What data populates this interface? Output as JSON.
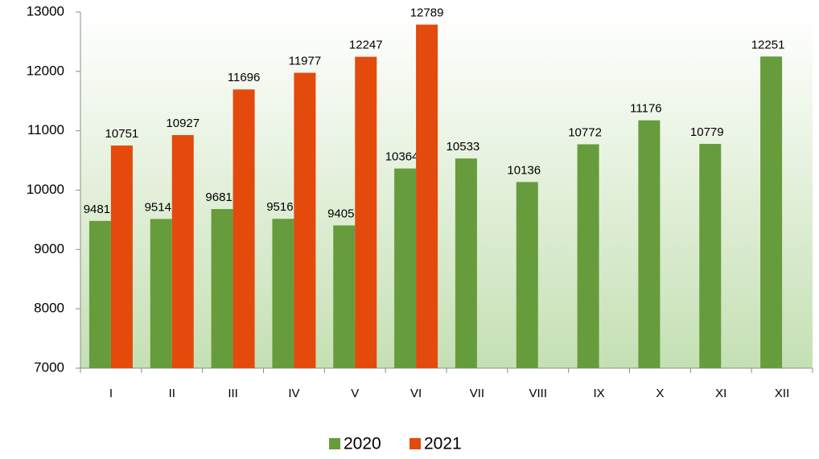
{
  "chart_data": {
    "type": "bar",
    "categories": [
      "I",
      "II",
      "III",
      "IV",
      "V",
      "VI",
      "VII",
      "VIII",
      "IX",
      "X",
      "XI",
      "XII"
    ],
    "series": [
      {
        "name": "2020",
        "color": "#669c3c",
        "values": [
          9481,
          9514,
          9681,
          9516,
          9405,
          10364,
          10533,
          10136,
          10772,
          11176,
          10779,
          12251
        ]
      },
      {
        "name": "2021",
        "color": "#e34a0c",
        "values": [
          10751,
          10927,
          11696,
          11977,
          12247,
          12789,
          null,
          null,
          null,
          null,
          null,
          null
        ]
      }
    ],
    "ylim": [
      7000,
      13000
    ],
    "yticks": [
      7000,
      8000,
      9000,
      10000,
      11000,
      12000,
      13000
    ],
    "grid": false,
    "legend": "bottom"
  }
}
